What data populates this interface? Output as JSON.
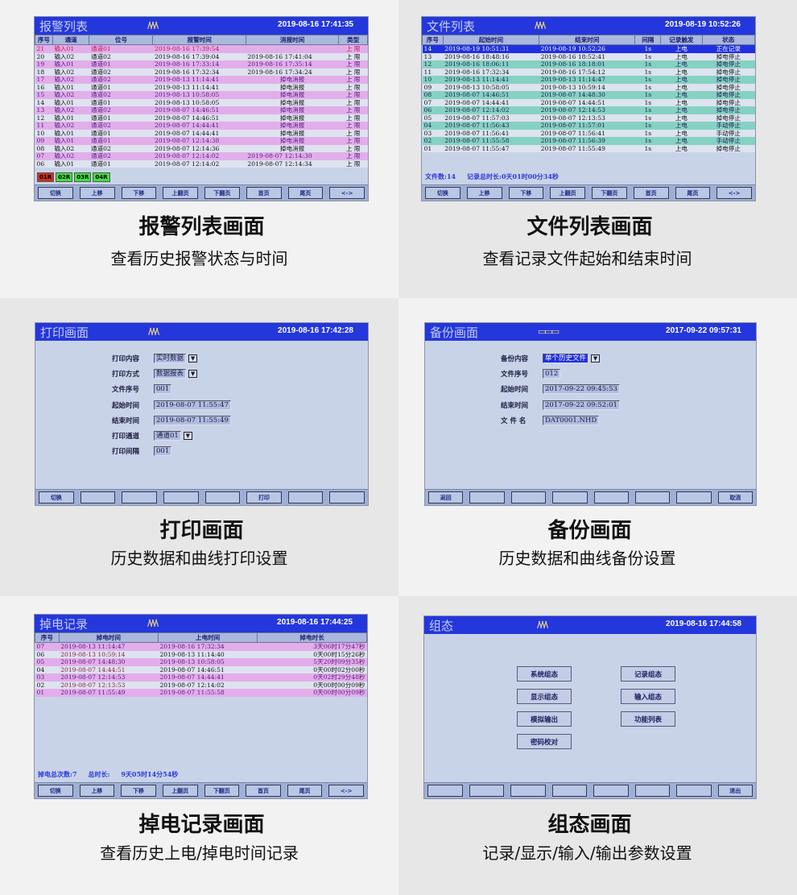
{
  "colors": {
    "titlebar": "#2437dc",
    "screen_bg": "#c9d3e8",
    "alarm_row": "#e2aeea",
    "file_row_alt": "#86d2c2",
    "file_row_active": "#2030e0",
    "indicator_red": "#d03020",
    "indicator_green": "#40e040"
  },
  "panels": [
    {
      "id": "alarm",
      "title": "报警列表",
      "logo": "/\\/\\/\\",
      "datetime": "2019-08-16 17:41:35",
      "caption": "报警列表画面",
      "subcaption": "查看历史报警状态与时间",
      "columns": [
        "序号",
        "通道",
        "位号",
        "报警时间",
        "消报时间",
        "类型"
      ],
      "rows": [
        [
          "21",
          "输入01",
          "通道01",
          "2019-08-16  17:39:54",
          "",
          "上  限"
        ],
        [
          "20",
          "输入02",
          "通道02",
          "2019-08-16  17:39:04",
          "2019-08-16  17:41:04",
          "上  限"
        ],
        [
          "19",
          "输入01",
          "通道01",
          "2019-08-16  17:33:14",
          "2019-08-16  17:35:14",
          "上  限"
        ],
        [
          "18",
          "输入02",
          "通道02",
          "2019-08-16  17:32:34",
          "2019-08-16  17:34:24",
          "上  限"
        ],
        [
          "17",
          "输入02",
          "通道02",
          "2019-08-13  11:14:41",
          "掉电消报",
          "上  限"
        ],
        [
          "16",
          "输入01",
          "通道01",
          "2019-08-13  11:14:41",
          "掉电消报",
          "上  限"
        ],
        [
          "15",
          "输入02",
          "通道02",
          "2019-08-13  10:58:05",
          "掉电消报",
          "上  限"
        ],
        [
          "14",
          "输入01",
          "通道01",
          "2019-08-13  10:58:05",
          "掉电消报",
          "上  限"
        ],
        [
          "13",
          "输入02",
          "通道02",
          "2019-08-07  14:46:51",
          "掉电消报",
          "上  限"
        ],
        [
          "12",
          "输入01",
          "通道01",
          "2019-08-07  14:46:51",
          "掉电消报",
          "上  限"
        ],
        [
          "11",
          "输入02",
          "通道02",
          "2019-08-07  14:44:41",
          "掉电消报",
          "上  限"
        ],
        [
          "10",
          "输入01",
          "通道01",
          "2019-08-07  14:44:41",
          "掉电消报",
          "上  限"
        ],
        [
          "09",
          "输入01",
          "通道01",
          "2019-08-07  12:14:38",
          "掉电消报",
          "上  限"
        ],
        [
          "08",
          "输入02",
          "通道02",
          "2019-08-07  12:14:36",
          "掉电消报",
          "上  限"
        ],
        [
          "07",
          "输入02",
          "通道02",
          "2019-08-07  12:14:02",
          "2019-08-07  12:14:30",
          "上  限"
        ],
        [
          "06",
          "输入01",
          "通道01",
          "2019-08-07  12:14:02",
          "2019-08-07  12:14:34",
          "上  限"
        ]
      ],
      "indicators": [
        {
          "label": "01R",
          "state": "red"
        },
        {
          "label": "02R",
          "state": "green"
        },
        {
          "label": "03R",
          "state": "green"
        },
        {
          "label": "04R",
          "state": "green"
        }
      ],
      "buttons": [
        "切换",
        "上移",
        "下移",
        "上翻页",
        "下翻页",
        "首页",
        "尾页",
        "<->"
      ]
    },
    {
      "id": "file",
      "title": "文件列表",
      "logo": "/\\/\\/\\",
      "datetime": "2019-08-19 10:52:26",
      "caption": "文件列表画面",
      "subcaption": "查看记录文件起始和结束时间",
      "columns": [
        "序号",
        "起始时间",
        "结束时间",
        "间隔",
        "记录触发",
        "状态"
      ],
      "rows": [
        [
          "14",
          "2019-08-19  10:51:31",
          "2019-08-19  10:52:26",
          "1s",
          "上电",
          "正在记录"
        ],
        [
          "13",
          "2019-08-16  18:48:16",
          "2019-08-16  18:52:41",
          "1s",
          "上电",
          "掉电停止"
        ],
        [
          "12",
          "2019-08-16  18:06:11",
          "2019-08-16  18:18:01",
          "1s",
          "上电",
          "掉电停止"
        ],
        [
          "11",
          "2019-08-16  17:32:34",
          "2019-08-16  17:54:12",
          "1s",
          "上电",
          "掉电停止"
        ],
        [
          "10",
          "2019-08-13  11:14:41",
          "2019-08-13  11:14:47",
          "1s",
          "上电",
          "掉电停止"
        ],
        [
          "09",
          "2019-08-13  10:58:05",
          "2019-08-13  10:59:14",
          "1s",
          "上电",
          "掉电停止"
        ],
        [
          "08",
          "2019-08-07  14:46:51",
          "2019-08-07  14:48:30",
          "1s",
          "上电",
          "掉电停止"
        ],
        [
          "07",
          "2019-08-07  14:44:41",
          "2019-08-07  14:44:51",
          "1s",
          "上电",
          "掉电停止"
        ],
        [
          "06",
          "2019-08-07  12:14:02",
          "2019-08-07  12:14:53",
          "1s",
          "上电",
          "掉电停止"
        ],
        [
          "05",
          "2019-08-07  11:57:03",
          "2019-08-07  12:13:53",
          "1s",
          "上电",
          "掉电停止"
        ],
        [
          "04",
          "2019-08-07  11:56:43",
          "2019-08-07  11:57:01",
          "1s",
          "上电",
          "手动停止"
        ],
        [
          "03",
          "2019-08-07  11:56:41",
          "2019-08-07  11:56:41",
          "1s",
          "上电",
          "手动停止"
        ],
        [
          "02",
          "2019-08-07  11:55:58",
          "2019-08-07  11:56:39",
          "1s",
          "上电",
          "手动停止"
        ],
        [
          "01",
          "2019-08-07  11:55:47",
          "2019-08-07  11:55:49",
          "1s",
          "上电",
          "掉电停止"
        ]
      ],
      "footer": "文件数:14     记录总时长:0天01时00分34秒",
      "buttons": [
        "切换",
        "上移",
        "下移",
        "上翻页",
        "下翻页",
        "首页",
        "尾页",
        "<->"
      ]
    },
    {
      "id": "print",
      "title": "打印画面",
      "logo": "/\\/\\/\\",
      "datetime": "2019-08-16 17:42:28",
      "caption": "打印画面",
      "subcaption": "历史数据和曲线打印设置",
      "fields": [
        {
          "label": "打印内容",
          "value": "实时数据",
          "dropdown": true
        },
        {
          "label": "打印方式",
          "value": "数据报表",
          "dropdown": true
        },
        {
          "label": "文件序号",
          "value": "001",
          "dropdown": false
        },
        {
          "label": "起始时间",
          "value": "2019-08-07  11:55:47",
          "dropdown": false
        },
        {
          "label": "结束时间",
          "value": "2019-08-07  11:55:49",
          "dropdown": false
        },
        {
          "label": "打印通道",
          "value": "通道01",
          "dropdown": true
        },
        {
          "label": "打印间隔",
          "value": "001",
          "dropdown": false
        }
      ],
      "buttons": [
        "切换",
        "",
        "",
        "",
        "",
        "打印",
        "",
        ""
      ]
    },
    {
      "id": "backup",
      "title": "备份画面",
      "logo": "▭▭▭",
      "datetime": "2017-09-22 09:57:31",
      "caption": "备份画面",
      "subcaption": "历史数据和曲线备份设置",
      "fields": [
        {
          "label": "备份内容",
          "value": "单个历史文件",
          "dropdown": true,
          "selected": true
        },
        {
          "label": "文件序号",
          "value": "012",
          "dropdown": false
        },
        {
          "label": "起始时间",
          "value": "2017-09-22  09:45:53",
          "dropdown": false
        },
        {
          "label": "结束时间",
          "value": "2017-09-22  09:52:01",
          "dropdown": false
        },
        {
          "label": "文 件 名",
          "value": "DAT0001.NHD",
          "dropdown": false
        }
      ],
      "buttons": [
        "返回",
        "",
        "",
        "",
        "",
        "",
        "",
        "取消"
      ]
    },
    {
      "id": "power",
      "title": "掉电记录",
      "logo": "/\\/\\/\\",
      "datetime": "2019-08-16 17:44:25",
      "caption": "掉电记录画面",
      "subcaption": "查看历史上电/掉电时间记录",
      "columns": [
        "序号",
        "掉电时间",
        "上电时间",
        "掉电时长"
      ],
      "rows": [
        [
          "07",
          "2019-08-13  11:14:47",
          "2019-08-16  17:32:34",
          "3天06时17分47秒"
        ],
        [
          "06",
          "2019-08-13  10:59:14",
          "2019-08-13  11:14:40",
          "0天00时15分26秒"
        ],
        [
          "05",
          "2019-08-07  14:48:30",
          "2019-08-13  10:58:05",
          "5天20时09分35秒"
        ],
        [
          "04",
          "2019-08-07  14:44:51",
          "2019-08-07  14:46:51",
          "0天00时02分00秒"
        ],
        [
          "03",
          "2019-08-07  12:14:53",
          "2019-08-07  14:44:41",
          "0天02时29分48秒"
        ],
        [
          "02",
          "2019-08-07  12:13:53",
          "2019-08-07  12:14:02",
          "0天00时00分09秒"
        ],
        [
          "01",
          "2019-08-07  11:55:49",
          "2019-08-07  11:55:58",
          "0天00时00分09秒"
        ]
      ],
      "footer": "掉电总次数:7     总时长:     9天05时14分54秒",
      "buttons": [
        "切换",
        "上移",
        "下移",
        "上翻页",
        "下翻页",
        "首页",
        "尾页",
        "<->"
      ]
    },
    {
      "id": "config",
      "title": "组态",
      "logo": "/\\/\\/\\",
      "datetime": "2019-08-16 17:44:58",
      "caption": "组态画面",
      "subcaption": "记录/显示/输入/输出参数设置",
      "menu_left": [
        "系统组态",
        "显示组态",
        "模拟输出",
        "密码校对"
      ],
      "menu_right": [
        "记录组态",
        "输入组态",
        "功能列表"
      ],
      "buttons": [
        "",
        "",
        "",
        "",
        "",
        "",
        "",
        "退出"
      ]
    }
  ]
}
